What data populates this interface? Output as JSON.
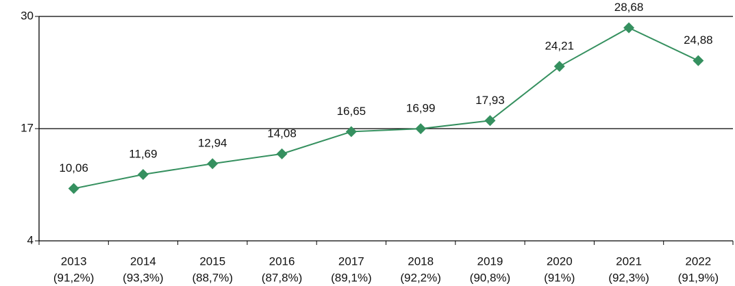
{
  "chart_data": {
    "type": "line",
    "categories": [
      "2013",
      "2014",
      "2015",
      "2016",
      "2017",
      "2018",
      "2019",
      "2020",
      "2021",
      "2022"
    ],
    "subcategories": [
      "(91,2%)",
      "(93,3%)",
      "(88,7%)",
      "(87,8%)",
      "(89,1%)",
      "(92,2%)",
      "(90,8%)",
      "(91%)",
      "(92,3%)",
      "(91,9%)"
    ],
    "series": [
      {
        "color": "#35905f",
        "values": [
          10.06,
          11.69,
          12.94,
          14.08,
          16.65,
          16.99,
          17.93,
          24.21,
          28.68,
          24.88
        ],
        "value_labels": [
          "10,06",
          "11,69",
          "12,94",
          "14,08",
          "16,65",
          "16,99",
          "17,93",
          "24,21",
          "28,68",
          "24,88"
        ]
      }
    ],
    "ylim": [
      4,
      30
    ],
    "yticks": [
      4,
      17,
      30
    ],
    "grid": true
  }
}
